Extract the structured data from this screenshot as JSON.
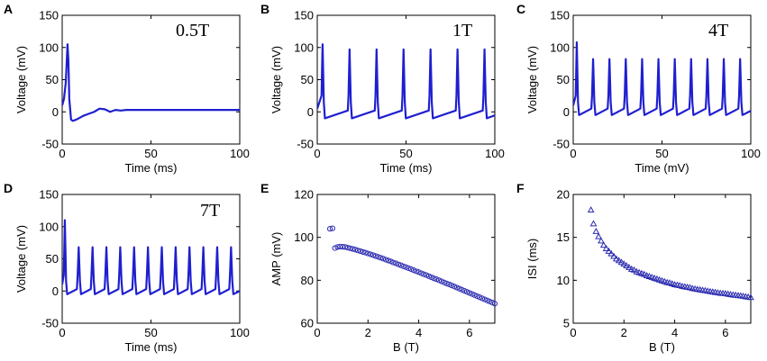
{
  "figure": {
    "colors": {
      "trace": "#1f1fd0",
      "marker": "#2a2ab0",
      "axis": "#000000"
    }
  },
  "chart_data": [
    {
      "panel": "A",
      "type": "line",
      "annotation": "0.5T",
      "xlabel": "Time (ms)",
      "ylabel": "Voltage (mV)",
      "xlim": [
        0,
        100
      ],
      "ylim": [
        -50,
        150
      ],
      "xticks": [
        0,
        50,
        100
      ],
      "xtick_labels": [
        "0",
        "50",
        "100"
      ],
      "yticks": [
        -50,
        0,
        50,
        100,
        150
      ],
      "ytick_labels": [
        "-50",
        "0",
        "50",
        "100",
        "150"
      ],
      "series": [
        {
          "name": "V",
          "x": [
            0,
            1,
            2,
            3,
            3.5,
            4,
            5,
            6,
            8,
            10,
            12,
            15,
            18,
            21,
            24,
            27,
            30,
            33,
            36,
            40,
            50,
            100
          ],
          "y": [
            10,
            20,
            45,
            105,
            80,
            20,
            -12,
            -14,
            -12,
            -9,
            -6,
            -3,
            0,
            5,
            4,
            0,
            3,
            2,
            3,
            3,
            3,
            3
          ]
        }
      ]
    },
    {
      "panel": "B",
      "type": "line",
      "annotation": "1T",
      "xlabel": "Time (ms)",
      "ylabel": "Voltage (mV)",
      "xlim": [
        0,
        100
      ],
      "ylim": [
        -50,
        150
      ],
      "xticks": [
        0,
        50,
        100
      ],
      "xtick_labels": [
        "0",
        "50",
        "100"
      ],
      "yticks": [
        -50,
        0,
        50,
        100,
        150
      ],
      "ytick_labels": [
        "-50",
        "0",
        "50",
        "100",
        "150"
      ],
      "spike_train": {
        "first_time": 3,
        "first_amplitude": 105,
        "period": 15.2,
        "amplitude": 97,
        "rest": -10,
        "baseline_rise": 12,
        "count": 7
      }
    },
    {
      "panel": "C",
      "type": "line",
      "annotation": "4T",
      "xlabel": "Time (mV)",
      "ylabel": "Voltage (mV)",
      "xlim": [
        0,
        100
      ],
      "ylim": [
        -50,
        150
      ],
      "xticks": [
        0,
        50,
        100
      ],
      "xtick_labels": [
        "0",
        "50",
        "100"
      ],
      "yticks": [
        -50,
        0,
        50,
        100,
        150
      ],
      "ytick_labels": [
        "-50",
        "0",
        "50",
        "100",
        "150"
      ],
      "spike_train": {
        "first_time": 2,
        "first_amplitude": 108,
        "period": 9.2,
        "amplitude": 82,
        "rest": -5,
        "baseline_rise": 10,
        "count": 11
      }
    },
    {
      "panel": "D",
      "type": "line",
      "annotation": "7T",
      "xlabel": "Time (ms)",
      "ylabel": "Voltage (mV)",
      "xlim": [
        0,
        100
      ],
      "ylim": [
        -50,
        150
      ],
      "xticks": [
        0,
        50,
        100
      ],
      "xtick_labels": [
        "0",
        "50",
        "100"
      ],
      "yticks": [
        -50,
        0,
        50,
        100,
        150
      ],
      "ytick_labels": [
        "-50",
        "0",
        "50",
        "100",
        "150"
      ],
      "spike_train": {
        "first_time": 1.5,
        "first_amplitude": 110,
        "period": 7.8,
        "amplitude": 68,
        "rest": -5,
        "baseline_rise": 8,
        "count": 13
      }
    },
    {
      "panel": "E",
      "type": "scatter",
      "marker": "circle",
      "xlabel": "B (T)",
      "ylabel": "AMP (mV)",
      "xlim": [
        0,
        7
      ],
      "ylim": [
        60,
        120
      ],
      "xticks": [
        0,
        2,
        4,
        6
      ],
      "xtick_labels": [
        "0",
        "2",
        "4",
        "6"
      ],
      "yticks": [
        60,
        80,
        100,
        120
      ],
      "ytick_labels": [
        "60",
        "80",
        "100",
        "120"
      ],
      "series": [
        {
          "name": "AMP",
          "x": [
            0.5,
            0.6,
            0.7,
            0.8,
            0.9,
            1.0,
            1.1,
            1.2,
            1.3,
            1.4,
            1.5,
            1.6,
            1.7,
            1.8,
            1.9,
            2.0,
            2.1,
            2.2,
            2.3,
            2.4,
            2.5,
            2.6,
            2.7,
            2.8,
            2.9,
            3.0,
            3.1,
            3.2,
            3.3,
            3.4,
            3.5,
            3.6,
            3.7,
            3.8,
            3.9,
            4.0,
            4.1,
            4.2,
            4.3,
            4.4,
            4.5,
            4.6,
            4.7,
            4.8,
            4.9,
            5.0,
            5.1,
            5.2,
            5.3,
            5.4,
            5.5,
            5.6,
            5.7,
            5.8,
            5.9,
            6.0,
            6.1,
            6.2,
            6.3,
            6.4,
            6.5,
            6.6,
            6.7,
            6.8,
            6.9,
            7.0
          ],
          "y": [
            104,
            104.2,
            95,
            95.5,
            95.7,
            95.6,
            95.5,
            95.2,
            94.9,
            94.6,
            94.3,
            93.9,
            93.6,
            93.2,
            92.9,
            92.5,
            92.1,
            91.7,
            91.3,
            90.9,
            90.5,
            90.1,
            89.6,
            89.2,
            88.8,
            88.3,
            87.9,
            87.4,
            87.0,
            86.5,
            86.1,
            85.6,
            85.2,
            84.7,
            84.2,
            83.8,
            83.3,
            82.8,
            82.4,
            81.9,
            81.4,
            80.9,
            80.5,
            80.0,
            79.5,
            79.0,
            78.5,
            78.1,
            77.6,
            77.1,
            76.6,
            76.1,
            75.6,
            75.1,
            74.6,
            74.1,
            73.6,
            73.1,
            72.6,
            72.1,
            71.6,
            71.1,
            70.6,
            70.1,
            69.6,
            69.1
          ]
        }
      ]
    },
    {
      "panel": "F",
      "type": "scatter",
      "marker": "triangle",
      "xlabel": "B (T)",
      "ylabel": "ISI (ms)",
      "xlim": [
        0,
        7
      ],
      "ylim": [
        5,
        20
      ],
      "xticks": [
        0,
        2,
        4,
        6
      ],
      "xtick_labels": [
        "0",
        "2",
        "4",
        "6"
      ],
      "yticks": [
        5,
        10,
        15,
        20
      ],
      "ytick_labels": [
        "5",
        "10",
        "15",
        "20"
      ],
      "series": [
        {
          "name": "ISI",
          "x": [
            0.7,
            0.8,
            0.9,
            1.0,
            1.1,
            1.2,
            1.3,
            1.4,
            1.5,
            1.6,
            1.7,
            1.8,
            1.9,
            2.0,
            2.1,
            2.2,
            2.3,
            2.4,
            2.5,
            2.6,
            2.7,
            2.8,
            2.9,
            3.0,
            3.1,
            3.2,
            3.3,
            3.4,
            3.5,
            3.6,
            3.7,
            3.8,
            3.9,
            4.0,
            4.1,
            4.2,
            4.3,
            4.4,
            4.5,
            4.6,
            4.7,
            4.8,
            4.9,
            5.0,
            5.1,
            5.2,
            5.3,
            5.4,
            5.5,
            5.6,
            5.7,
            5.8,
            5.9,
            6.0,
            6.1,
            6.2,
            6.3,
            6.4,
            6.5,
            6.6,
            6.7,
            6.8,
            6.9,
            7.0
          ],
          "y": [
            18.2,
            16.6,
            15.7,
            15.1,
            14.6,
            14.1,
            13.7,
            13.4,
            13.1,
            12.8,
            12.5,
            12.3,
            12.1,
            11.9,
            11.7,
            11.5,
            11.3,
            11.2,
            11.0,
            10.9,
            10.8,
            10.7,
            10.55,
            10.45,
            10.35,
            10.25,
            10.15,
            10.05,
            9.95,
            9.85,
            9.75,
            9.7,
            9.6,
            9.5,
            9.45,
            9.4,
            9.3,
            9.25,
            9.2,
            9.15,
            9.05,
            9.0,
            8.95,
            8.9,
            8.85,
            8.8,
            8.75,
            8.7,
            8.65,
            8.6,
            8.55,
            8.5,
            8.48,
            8.45,
            8.4,
            8.35,
            8.3,
            8.27,
            8.23,
            8.2,
            8.15,
            8.1,
            8.05,
            8.0
          ]
        }
      ]
    }
  ]
}
